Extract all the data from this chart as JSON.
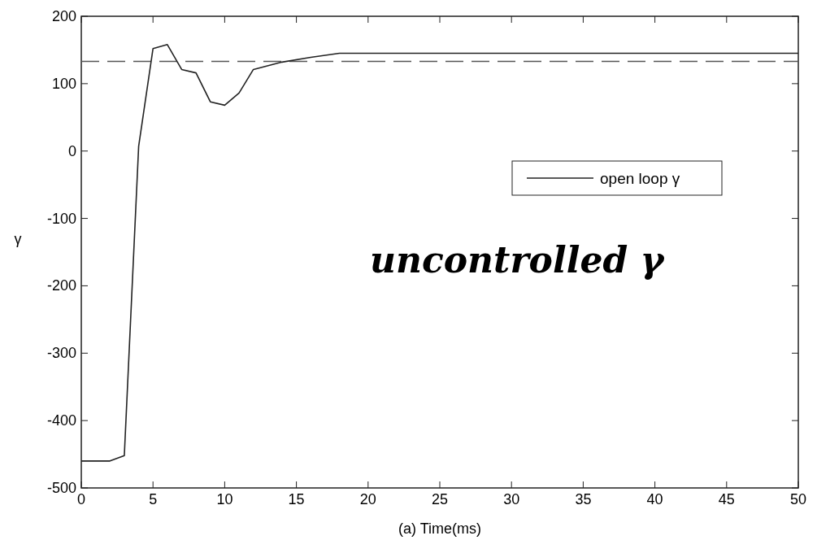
{
  "chart_data": {
    "type": "line",
    "xlabel": "(a) Time(ms)",
    "ylabel": "γ",
    "xlim": [
      0,
      50
    ],
    "ylim": [
      -500,
      200
    ],
    "xticks": [
      0,
      5,
      10,
      15,
      20,
      25,
      30,
      35,
      40,
      45,
      50
    ],
    "yticks": [
      -500,
      -400,
      -300,
      -200,
      -100,
      0,
      100,
      200
    ],
    "series": [
      {
        "name": "open loop γ",
        "color": "#222222",
        "x": [
          0,
          2,
          3,
          4,
          5,
          6,
          7,
          8,
          9,
          10,
          11,
          12,
          14,
          16,
          18,
          50
        ],
        "values": [
          -460,
          -460,
          -452,
          7,
          152,
          158,
          121,
          116,
          73,
          68,
          86,
          121,
          132,
          139,
          145,
          145
        ]
      }
    ],
    "ref_lines": [
      {
        "axis": "y",
        "value": 133,
        "color": "#555555",
        "line_style": "dashed"
      }
    ],
    "legend": "right",
    "grid": false,
    "line_style": "solid",
    "annotations": [
      "uncontrolled γ"
    ]
  }
}
